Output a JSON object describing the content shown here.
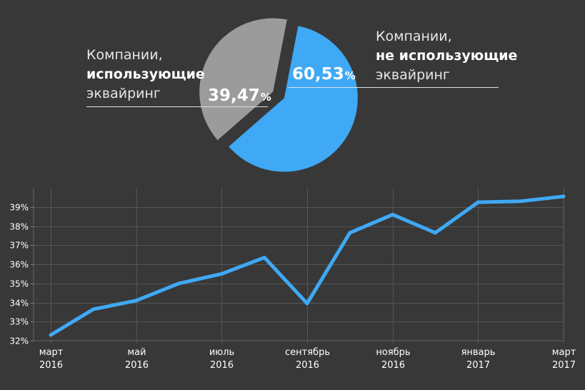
{
  "pie": {
    "left_label": {
      "line1": "Компании,",
      "line2": "использующие",
      "line3": "эквайринг"
    },
    "right_label": {
      "line1": "Компании,",
      "line2": "не использующие",
      "line3": "эквайринг"
    },
    "colors": {
      "left": "#9b9b9b",
      "right": "#3fa9f5"
    }
  },
  "chart_data": [
    {
      "type": "pie",
      "slices": [
        {
          "value": 39.47,
          "label": "39,47",
          "unit": "%",
          "color": "#9b9b9b"
        },
        {
          "value": 60.53,
          "label": "60,53",
          "unit": "%",
          "color": "#3fa9f5"
        }
      ]
    },
    {
      "type": "line",
      "x": [
        "2016-03",
        "2016-04",
        "2016-05",
        "2016-06",
        "2016-07",
        "2016-08",
        "2016-09",
        "2016-10",
        "2016-11",
        "2016-12",
        "2017-01",
        "2017-02",
        "2017-03"
      ],
      "series": [
        {
          "values": [
            32.3,
            33.65,
            34.1,
            35.0,
            35.5,
            36.35,
            33.95,
            37.65,
            38.6,
            37.65,
            39.25,
            39.3,
            39.55
          ],
          "color": "#3fa9f5"
        }
      ],
      "ylim": [
        32,
        40
      ],
      "ytick_values": [
        32,
        33,
        34,
        35,
        36,
        37,
        38,
        39
      ],
      "yticks": [
        "32%",
        "33%",
        "34%",
        "35%",
        "36%",
        "37%",
        "38%",
        "39%"
      ],
      "xtick_indices": [
        0,
        2,
        4,
        6,
        8,
        10,
        12
      ],
      "xticks": [
        {
          "month": "март",
          "year": "2016"
        },
        {
          "month": "май",
          "year": "2016"
        },
        {
          "month": "июль",
          "year": "2016"
        },
        {
          "month": "сентябрь",
          "year": "2016"
        },
        {
          "month": "ноябрь",
          "year": "2016"
        },
        {
          "month": "январь",
          "year": "2017"
        },
        {
          "month": "март",
          "year": "2017"
        }
      ],
      "grid": true
    }
  ]
}
